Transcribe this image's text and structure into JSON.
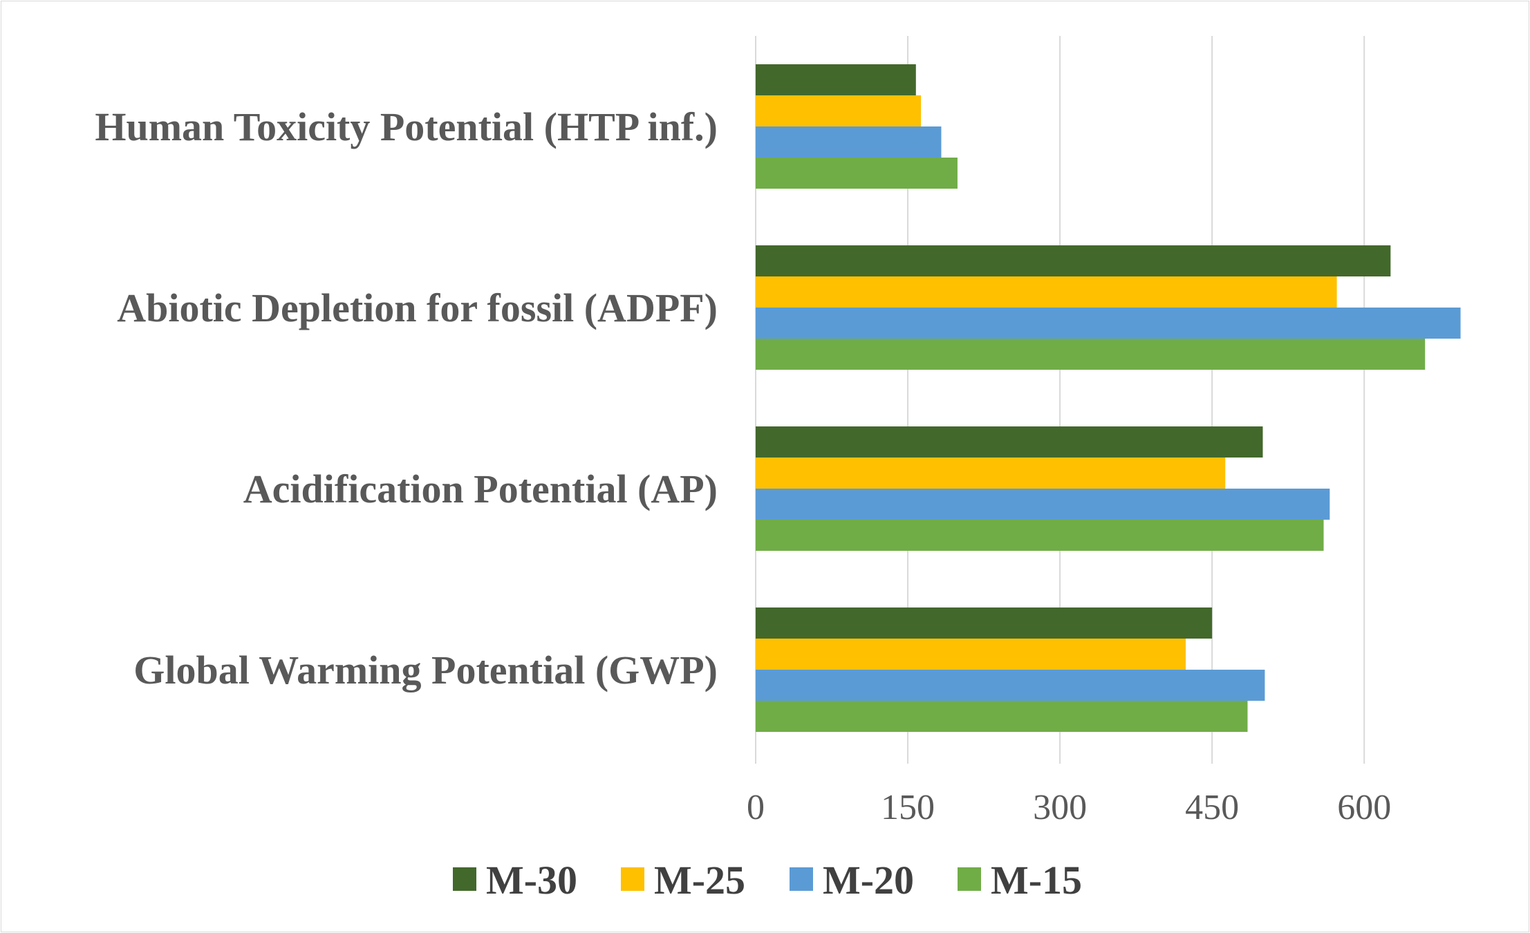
{
  "chart_data": {
    "type": "bar",
    "orientation": "horizontal",
    "categories": [
      "Human Toxicity Potential (HTP inf.)",
      "Abiotic Depletion for fossil (ADPF)",
      "Acidification Potential (AP)",
      "Global Warming Potential (GWP)"
    ],
    "series": [
      {
        "name": "M-30",
        "color": "#43682b",
        "values": [
          158,
          626,
          500,
          450
        ]
      },
      {
        "name": "M-25",
        "color": "#ffc000",
        "values": [
          163,
          573,
          463,
          424
        ]
      },
      {
        "name": "M-20",
        "color": "#5b9bd5",
        "values": [
          183,
          695,
          566,
          502
        ]
      },
      {
        "name": "M-15",
        "color": "#70ad47",
        "values": [
          199,
          660,
          560,
          485
        ]
      }
    ],
    "x_ticks": [
      "0",
      "150",
      "300",
      "450",
      "600"
    ],
    "xlim": [
      0,
      750
    ],
    "grid": true,
    "legend_position": "bottom"
  }
}
